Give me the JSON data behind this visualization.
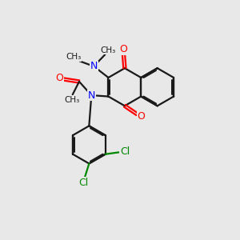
{
  "background_color": "#e8e8e8",
  "bond_color": "#1a1a1a",
  "nitrogen_color": "#0000ff",
  "oxygen_color": "#ff0000",
  "chlorine_color": "#008800",
  "line_width": 1.6,
  "dbo": 0.055,
  "figsize": [
    3.0,
    3.0
  ],
  "dpi": 100,
  "xlim": [
    0,
    10
  ],
  "ylim": [
    0,
    10
  ]
}
